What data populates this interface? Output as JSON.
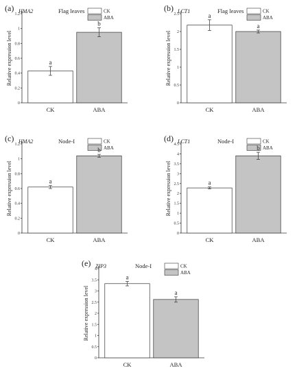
{
  "colors": {
    "ck": "#ffffff",
    "aba": "#c4c4c4",
    "stroke": "#333333"
  },
  "chart_data": [
    {
      "type": "bar",
      "panel": "(a)",
      "gene": "HMA2",
      "tissue": "Flag leaves",
      "ylabel": "Relative expression level",
      "categories": [
        "CK",
        "ABA"
      ],
      "values": [
        0.43,
        0.95
      ],
      "errors": [
        0.06,
        0.06
      ],
      "significance": [
        "a",
        "b"
      ],
      "ylim": [
        0,
        1.2
      ],
      "yticks": [
        0,
        0.2,
        0.4,
        0.6,
        0.8,
        1,
        1.2
      ],
      "legend": [
        "CK",
        "ABA"
      ]
    },
    {
      "type": "bar",
      "panel": "(b)",
      "gene": "LCT1",
      "tissue": "Flag leaves",
      "ylabel": "Relative expression level",
      "categories": [
        "CK",
        "ABA"
      ],
      "values": [
        2.18,
        2.0
      ],
      "errors": [
        0.15,
        0.04
      ],
      "significance": [
        "a",
        "a"
      ],
      "ylim": [
        0,
        2.5
      ],
      "yticks": [
        0,
        0.5,
        1,
        1.5,
        2,
        2.5
      ],
      "legend": [
        "CK",
        "ABA"
      ]
    },
    {
      "type": "bar",
      "panel": "(c)",
      "gene": "HMA2",
      "tissue": "Node-I",
      "ylabel": "Relative expression level",
      "categories": [
        "CK",
        "ABA"
      ],
      "values": [
        0.62,
        1.04
      ],
      "errors": [
        0.02,
        0.02
      ],
      "significance": [
        "a",
        "b"
      ],
      "ylim": [
        0,
        1.2
      ],
      "yticks": [
        0,
        0.2,
        0.4,
        0.6,
        0.8,
        1,
        1.2
      ],
      "legend": [
        "CK",
        "ABA"
      ]
    },
    {
      "type": "bar",
      "panel": "(d)",
      "gene": "LCT1",
      "tissue": "Node-I",
      "ylabel": "Relative expression level",
      "categories": [
        "CK",
        "ABA"
      ],
      "values": [
        2.28,
        3.9
      ],
      "errors": [
        0.05,
        0.18
      ],
      "significance": [
        "a",
        "b"
      ],
      "ylim": [
        0,
        4.5
      ],
      "yticks": [
        0,
        0.5,
        1,
        1.5,
        2,
        2.5,
        3,
        3.5,
        4,
        4.5
      ],
      "legend": [
        "CK",
        "ABA"
      ]
    },
    {
      "type": "bar",
      "panel": "(e)",
      "gene": "ZIP3",
      "tissue": "Node-I",
      "ylabel": "Relative expression level",
      "categories": [
        "CK",
        "ABA"
      ],
      "values": [
        3.33,
        2.62
      ],
      "errors": [
        0.1,
        0.12
      ],
      "significance": [
        "a",
        "a"
      ],
      "ylim": [
        0,
        4
      ],
      "yticks": [
        0,
        0.5,
        1,
        1.5,
        2,
        2.5,
        3,
        3.5,
        4
      ],
      "legend": [
        "CK",
        "ABA"
      ]
    }
  ]
}
